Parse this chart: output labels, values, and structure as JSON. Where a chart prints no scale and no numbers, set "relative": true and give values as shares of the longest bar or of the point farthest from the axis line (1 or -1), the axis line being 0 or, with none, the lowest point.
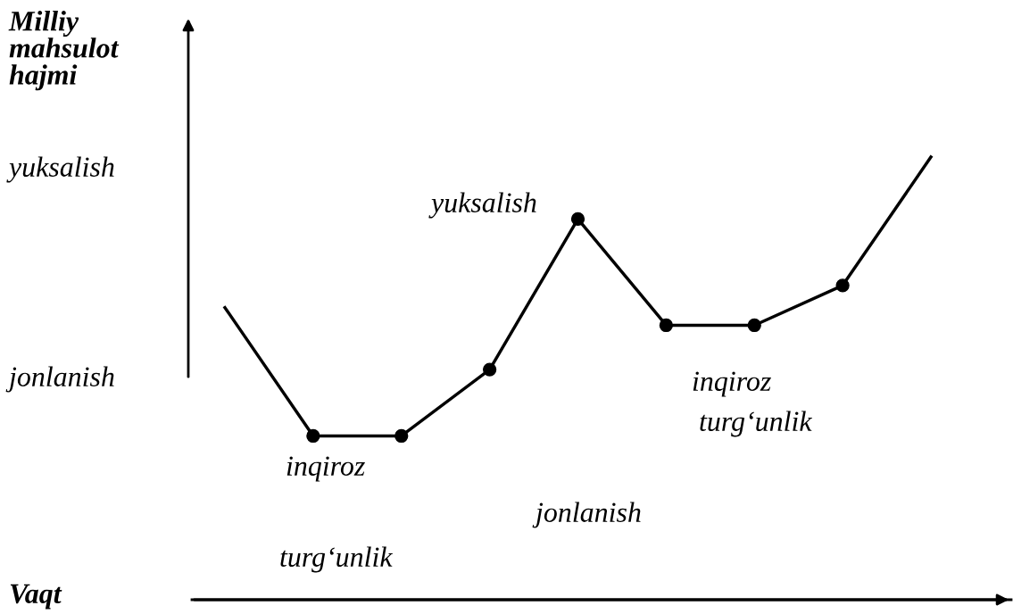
{
  "chart_data": {
    "type": "line",
    "relative": true,
    "ylabel": "Milliy\nmahsulot\nhajmi",
    "xlabel": "Vaqt",
    "categories": [
      null,
      null,
      null,
      null,
      null,
      null,
      null,
      null,
      null
    ],
    "series": [
      {
        "color": "#000000",
        "marker": "circle",
        "values": [
          0.66,
          0.37,
          0.37,
          0.52,
          0.86,
          0.62,
          0.62,
          0.71,
          1.0
        ]
      }
    ],
    "annotations": [
      "yuksalish",
      "jonlanish",
      "yuksalish",
      "inqiroz",
      "jonlanish",
      "turg‘unlik",
      "inqiroz",
      "turg‘unlik"
    ],
    "grid": false,
    "legend": false
  }
}
